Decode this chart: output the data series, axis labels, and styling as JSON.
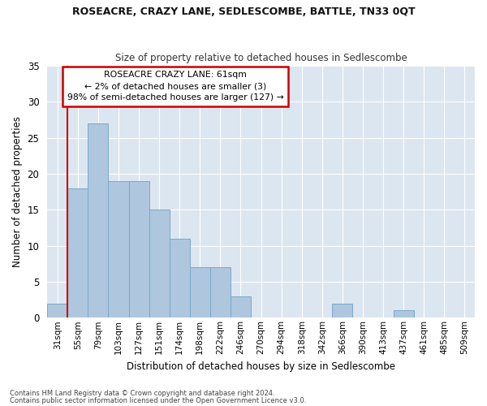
{
  "title": "ROSEACRE, CRAZY LANE, SEDLESCOMBE, BATTLE, TN33 0QT",
  "subtitle": "Size of property relative to detached houses in Sedlescombe",
  "xlabel": "Distribution of detached houses by size in Sedlescombe",
  "ylabel": "Number of detached properties",
  "footnote1": "Contains HM Land Registry data © Crown copyright and database right 2024.",
  "footnote2": "Contains public sector information licensed under the Open Government Licence v3.0.",
  "bin_labels": [
    "31sqm",
    "55sqm",
    "79sqm",
    "103sqm",
    "127sqm",
    "151sqm",
    "174sqm",
    "198sqm",
    "222sqm",
    "246sqm",
    "270sqm",
    "294sqm",
    "318sqm",
    "342sqm",
    "366sqm",
    "390sqm",
    "413sqm",
    "437sqm",
    "461sqm",
    "485sqm",
    "509sqm"
  ],
  "bar_values": [
    2,
    18,
    27,
    19,
    19,
    15,
    11,
    7,
    7,
    3,
    0,
    0,
    0,
    0,
    2,
    0,
    0,
    1,
    0,
    0,
    0
  ],
  "bar_color": "#aec6de",
  "bar_edge_color": "#7aaac8",
  "background_color": "#dce6f0",
  "grid_color": "#ffffff",
  "vline_color": "#cc0000",
  "vline_x_index": 1,
  "annotation_text": "ROSEACRE CRAZY LANE: 61sqm\n← 2% of detached houses are smaller (3)\n98% of semi-detached houses are larger (127) →",
  "annotation_box_color": "#ffffff",
  "annotation_box_edge": "#cc0000",
  "ylim": [
    0,
    35
  ],
  "yticks": [
    0,
    5,
    10,
    15,
    20,
    25,
    30,
    35
  ]
}
